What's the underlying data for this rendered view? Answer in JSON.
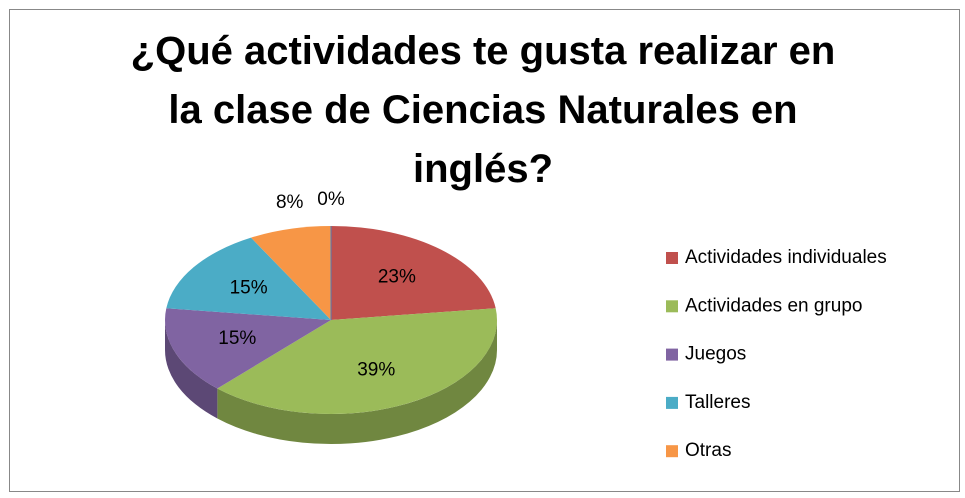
{
  "chart_data": {
    "type": "pie",
    "title": "¿Qué actividades te gusta realizar en la clase de Ciencias Naturales en inglés?",
    "categories": [
      "Actividades individuales",
      "Actividades en grupo",
      "Juegos",
      "Talleres",
      "Otras",
      null
    ],
    "values": [
      23,
      39,
      15,
      15,
      8,
      0
    ],
    "value_labels": [
      "23%",
      "39%",
      "15%",
      "15%",
      "8%",
      "0%"
    ],
    "colors": [
      "#c0504d",
      "#9bbb59",
      "#8064a2",
      "#4bacc6",
      "#f79646",
      "#4f81bd"
    ],
    "legend": "right"
  }
}
